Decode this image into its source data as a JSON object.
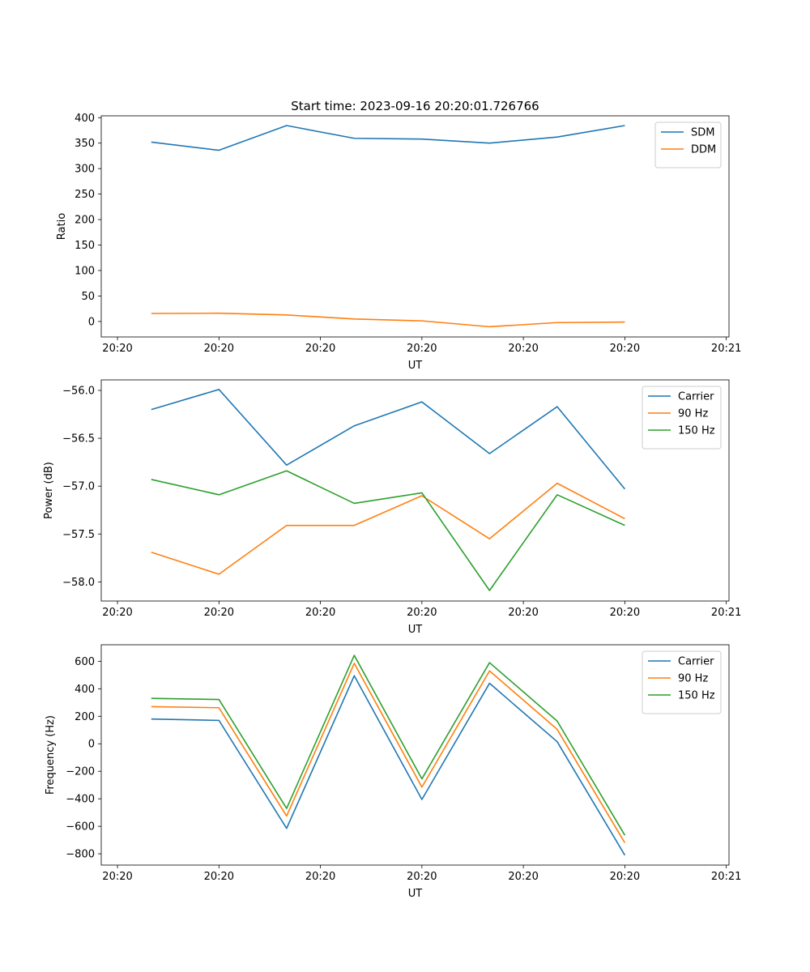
{
  "figure": {
    "title": "Start time: 2023-09-16 20:20:01.726766"
  },
  "chart_data": [
    {
      "type": "line",
      "xlabel": "UT",
      "ylabel": "Ratio",
      "xlim": [
        -0.12,
        4.52
      ],
      "ylim": [
        -30.4,
        403.6
      ],
      "x": [
        0.25,
        0.75,
        1.25,
        1.75,
        2.25,
        2.75,
        3.25,
        3.75
      ],
      "x_ticks": [
        0,
        0.75,
        1.5,
        2.25,
        3.0,
        3.75,
        4.5
      ],
      "x_tick_labels": [
        "20:20",
        "20:20",
        "20:20",
        "20:20",
        "20:20",
        "20:20",
        "20:21"
      ],
      "y_ticks": [
        0,
        50,
        100,
        150,
        200,
        250,
        300,
        350,
        400
      ],
      "y_tick_labels": [
        "0",
        "50",
        "100",
        "150",
        "200",
        "250",
        "300",
        "350",
        "400"
      ],
      "legend": "top-right",
      "series": [
        {
          "name": "SDM",
          "color": "#1f77b4",
          "values": [
            352,
            336,
            384.5,
            359.5,
            358,
            350,
            362,
            384.5
          ]
        },
        {
          "name": "DDM",
          "color": "#ff7f0e",
          "values": [
            15.7,
            16.2,
            12.8,
            4.8,
            1.2,
            -10.3,
            -2.2,
            -1.1
          ]
        }
      ]
    },
    {
      "type": "line",
      "xlabel": "UT",
      "ylabel": "Power (dB)",
      "xlim": [
        -0.12,
        4.52
      ],
      "ylim": [
        -58.2,
        -55.89
      ],
      "x": [
        0.25,
        0.75,
        1.25,
        1.75,
        2.25,
        2.75,
        3.25,
        3.75
      ],
      "x_ticks": [
        0,
        0.75,
        1.5,
        2.25,
        3.0,
        3.75,
        4.5
      ],
      "x_tick_labels": [
        "20:20",
        "20:20",
        "20:20",
        "20:20",
        "20:20",
        "20:20",
        "20:21"
      ],
      "y_ticks": [
        -56.0,
        -56.5,
        -57.0,
        -57.5,
        -58.0
      ],
      "y_tick_labels": [
        "−56.0",
        "−56.5",
        "−57.0",
        "−57.5",
        "−58.0"
      ],
      "legend": "top-right",
      "series": [
        {
          "name": "Carrier",
          "color": "#1f77b4",
          "values": [
            -56.2,
            -55.99,
            -56.78,
            -56.37,
            -56.12,
            -56.66,
            -56.17,
            -57.03
          ]
        },
        {
          "name": "90 Hz",
          "color": "#ff7f0e",
          "values": [
            -57.69,
            -57.92,
            -57.41,
            -57.41,
            -57.1,
            -57.55,
            -56.97,
            -57.34
          ]
        },
        {
          "name": "150 Hz",
          "color": "#2ca02c",
          "values": [
            -56.93,
            -57.09,
            -56.84,
            -57.18,
            -57.07,
            -58.09,
            -57.09,
            -57.41
          ]
        }
      ]
    },
    {
      "type": "line",
      "xlabel": "UT",
      "ylabel": "Frequency (Hz)",
      "xlim": [
        -0.12,
        4.52
      ],
      "ylim": [
        -882,
        720
      ],
      "x": [
        0.25,
        0.75,
        1.25,
        1.75,
        2.25,
        2.75,
        3.25,
        3.75
      ],
      "x_ticks": [
        0,
        0.75,
        1.5,
        2.25,
        3.0,
        3.75,
        4.5
      ],
      "x_tick_labels": [
        "20:20",
        "20:20",
        "20:20",
        "20:20",
        "20:20",
        "20:20",
        "20:21"
      ],
      "y_ticks": [
        600,
        400,
        200,
        0,
        -200,
        -400,
        -600,
        -800
      ],
      "y_tick_labels": [
        "600",
        "400",
        "200",
        "0",
        "−200",
        "−400",
        "−600",
        "−800"
      ],
      "legend": "top-right",
      "series": [
        {
          "name": "Carrier",
          "color": "#1f77b4",
          "values": [
            180,
            170,
            -615,
            495,
            -405,
            440,
            15,
            -810
          ]
        },
        {
          "name": "90 Hz",
          "color": "#ff7f0e",
          "values": [
            270,
            262,
            -525,
            585,
            -315,
            530,
            105,
            -720
          ]
        },
        {
          "name": "150 Hz",
          "color": "#2ca02c",
          "values": [
            330,
            322,
            -470,
            643,
            -255,
            590,
            165,
            -665
          ]
        }
      ]
    }
  ]
}
